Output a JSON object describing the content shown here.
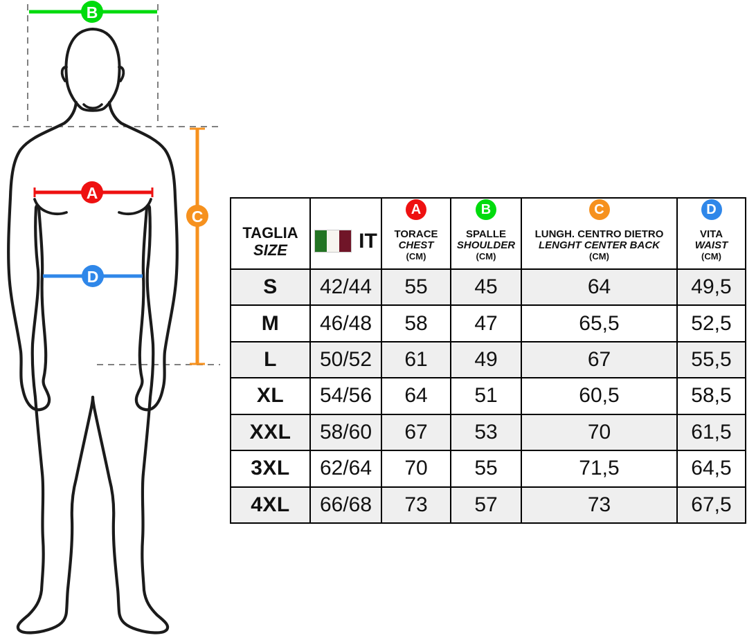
{
  "title": "garment size chart with body measurement diagram",
  "diagram": {
    "figure": "front-facing-male-body-outline",
    "markers": [
      {
        "letter": "A",
        "measure": "chest-line",
        "color": "#EE1111"
      },
      {
        "letter": "B",
        "measure": "shoulder-line",
        "color": "#00DB0D"
      },
      {
        "letter": "C",
        "measure": "center-back-length-line",
        "color": "#F6911E"
      },
      {
        "letter": "D",
        "measure": "waist-line",
        "color": "#2F87E9"
      }
    ],
    "guide_color": "#808080",
    "outline_color": "#1B1B1B"
  },
  "table": {
    "columns": [
      {
        "key": "size",
        "line1": "TAGLIA",
        "line2": "SIZE"
      },
      {
        "key": "it",
        "label": "IT",
        "flag": "italy-flag"
      },
      {
        "key": "chest",
        "badge": "A",
        "badge_color": "#EE1111",
        "line1": "TORACE",
        "line2": "CHEST",
        "line3": "(CM)"
      },
      {
        "key": "shoulder",
        "badge": "B",
        "badge_color": "#00DB0D",
        "line1": "SPALLE",
        "line2": "SHOULDER",
        "line3": "(CM)"
      },
      {
        "key": "back",
        "badge": "C",
        "badge_color": "#F6911E",
        "line1": "LUNGH. CENTRO DIETRO",
        "line2": "LENGHT CENTER BACK",
        "line3": "(CM)"
      },
      {
        "key": "waist",
        "badge": "D",
        "badge_color": "#2F87E9",
        "line1": "VITA",
        "line2": "WAIST",
        "line3": "(CM)"
      }
    ],
    "rows": [
      {
        "size": "S",
        "it": "42/44",
        "chest": "55",
        "shoulder": "45",
        "back": "64",
        "waist": "49,5"
      },
      {
        "size": "M",
        "it": "46/48",
        "chest": "58",
        "shoulder": "47",
        "back": "65,5",
        "waist": "52,5"
      },
      {
        "size": "L",
        "it": "50/52",
        "chest": "61",
        "shoulder": "49",
        "back": "67",
        "waist": "55,5"
      },
      {
        "size": "XL",
        "it": "54/56",
        "chest": "64",
        "shoulder": "51",
        "back": "60,5",
        "waist": "58,5"
      },
      {
        "size": "XXL",
        "it": "58/60",
        "chest": "67",
        "shoulder": "53",
        "back": "70",
        "waist": "61,5"
      },
      {
        "size": "3XL",
        "it": "62/64",
        "chest": "70",
        "shoulder": "55",
        "back": "71,5",
        "waist": "64,5"
      },
      {
        "size": "4XL",
        "it": "66/68",
        "chest": "73",
        "shoulder": "57",
        "back": "73",
        "waist": "67,5"
      }
    ],
    "row_alt_color": "#EFEFEF",
    "flag_colors": {
      "green": "#237423",
      "white": "#F7F5F0",
      "red": "#701528"
    }
  },
  "chart_data": {
    "type": "table",
    "columns": [
      "TAGLIA / SIZE",
      "IT",
      "TORACE / CHEST (CM)",
      "SPALLE / SHOULDER (CM)",
      "LUNGH. CENTRO DIETRO / LENGHT CENTER BACK (CM)",
      "VITA / WAIST (CM)"
    ],
    "rows": [
      [
        "S",
        "42/44",
        55,
        45,
        64,
        49.5
      ],
      [
        "M",
        "46/48",
        58,
        47,
        65.5,
        52.5
      ],
      [
        "L",
        "50/52",
        61,
        49,
        67,
        55.5
      ],
      [
        "XL",
        "54/56",
        64,
        51,
        60.5,
        58.5
      ],
      [
        "XXL",
        "58/60",
        67,
        53,
        70,
        61.5
      ],
      [
        "3XL",
        "62/64",
        70,
        55,
        71.5,
        64.5
      ],
      [
        "4XL",
        "66/68",
        73,
        57,
        73,
        67.5
      ]
    ]
  }
}
